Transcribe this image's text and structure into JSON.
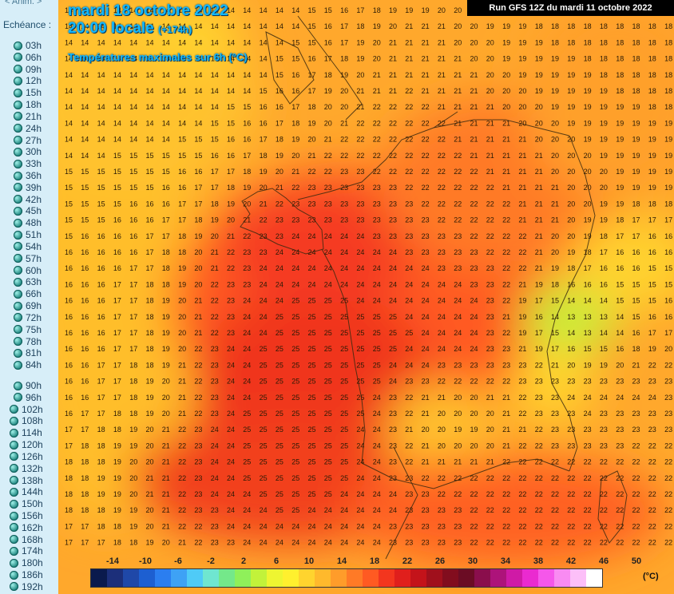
{
  "sidebar": {
    "anim_label": "< Anim. >",
    "echeance_label": "Echéance :",
    "hours": [
      "03h",
      "06h",
      "09h",
      "12h",
      "15h",
      "18h",
      "21h",
      "24h",
      "27h",
      "30h",
      "33h",
      "36h",
      "39h",
      "42h",
      "45h",
      "48h",
      "51h",
      "54h",
      "57h",
      "60h",
      "63h",
      "66h",
      "69h",
      "72h",
      "75h",
      "78h",
      "81h",
      "84h",
      "90h",
      "96h",
      "102h",
      "108h",
      "114h",
      "120h",
      "126h",
      "132h",
      "138h",
      "144h",
      "150h",
      "156h",
      "162h",
      "168h",
      "174h",
      "180h",
      "186h",
      "192h"
    ]
  },
  "map": {
    "date_title": "mardi 18 octobre 2022",
    "time_title": "20:00 locale",
    "offset": "(+174h)",
    "subtitle": "Températures maximales sur 6h (°C)",
    "run_label": "Run GFS 12Z du mardi 11 octobre 2022",
    "unit": "(°C)"
  },
  "legend": {
    "labels": [
      "-14",
      "-10",
      "-6",
      "-2",
      "2",
      "6",
      "10",
      "14",
      "18",
      "22",
      "26",
      "30",
      "34",
      "38",
      "42",
      "46",
      "50"
    ],
    "colors": [
      "#0a1a4d",
      "#1c2f7a",
      "#1f48a8",
      "#1d5fd1",
      "#2b7ef0",
      "#3ea2f5",
      "#4fcbf7",
      "#6fe6d0",
      "#74e88a",
      "#8ff05a",
      "#c2f23a",
      "#eef531",
      "#fff02e",
      "#ffd42e",
      "#ffb92c",
      "#ff9c2a",
      "#ff7a26",
      "#ff5a22",
      "#f3361e",
      "#e01f1c",
      "#c4131a",
      "#a0101c",
      "#820d1e",
      "#6b0c24",
      "#8a0e4c",
      "#ad137a",
      "#cf1aa6",
      "#ea2ad0",
      "#f557ea",
      "#f98bf2",
      "#fcbff8",
      "#ffffff"
    ]
  }
}
